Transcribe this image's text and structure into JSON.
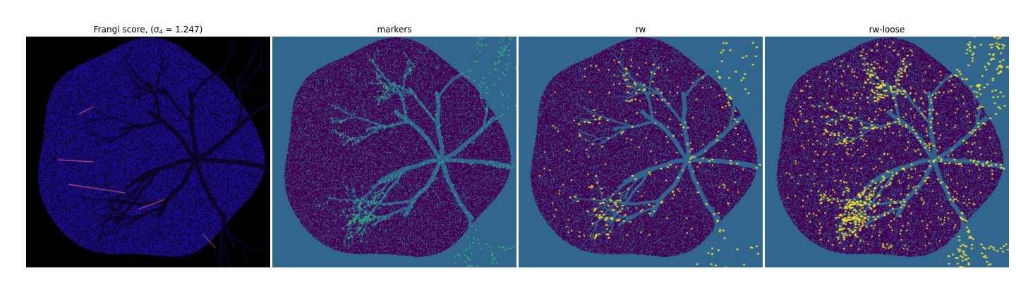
{
  "figure": {
    "panels": [
      {
        "title_prefix": "Frangi score, (σ",
        "title_sub": "4",
        "title_suffix": " = 1.247)",
        "colormap": "plasma",
        "background_color": "#000000",
        "tissue_color": "#1a0c8f",
        "vessel_color": "#0c0524",
        "highlight_color": "#e8608f",
        "highlight_density": 0.0
      },
      {
        "title": "markers",
        "colormap": "viridis",
        "background_color": "#31668e",
        "tissue_color": "#440154",
        "vessel_color": "#31668e",
        "highlight_color": "#35b779",
        "highlight_density": 0.0
      },
      {
        "title": "rw",
        "colormap": "viridis",
        "background_color": "#31668e",
        "tissue_color": "#440154",
        "vessel_color": "#31668e",
        "highlight_color": "#fde725",
        "highlight_density": 0.05
      },
      {
        "title": "rw-loose",
        "colormap": "viridis",
        "background_color": "#31668e",
        "tissue_color": "#440154",
        "vessel_color": "#31668e",
        "highlight_color": "#fde725",
        "highlight_density": 0.16
      }
    ]
  }
}
